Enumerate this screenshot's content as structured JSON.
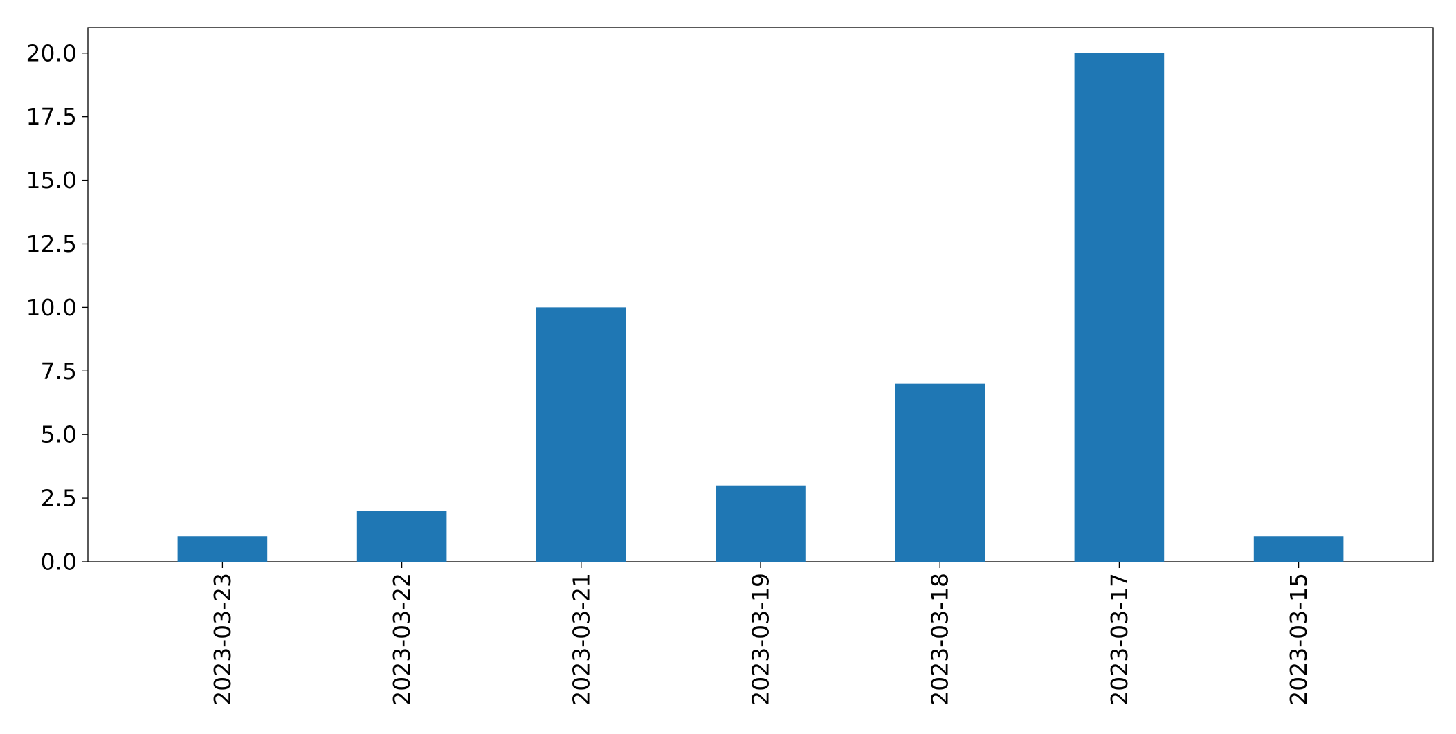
{
  "chart_data": {
    "type": "bar",
    "title": "",
    "xlabel": "",
    "ylabel": "",
    "categories": [
      "2023-03-23",
      "2023-03-22",
      "2023-03-21",
      "2023-03-19",
      "2023-03-18",
      "2023-03-17",
      "2023-03-15"
    ],
    "values": [
      1,
      2,
      10,
      3,
      7,
      20,
      1
    ],
    "ylim": [
      0,
      21
    ],
    "yticks": [
      "0.0",
      "2.5",
      "5.0",
      "7.5",
      "10.0",
      "12.5",
      "15.0",
      "17.5",
      "20.0"
    ],
    "grid": false,
    "legend": "none",
    "bar_color": "#1f77b4",
    "x_tick_rotation": "vertical"
  }
}
